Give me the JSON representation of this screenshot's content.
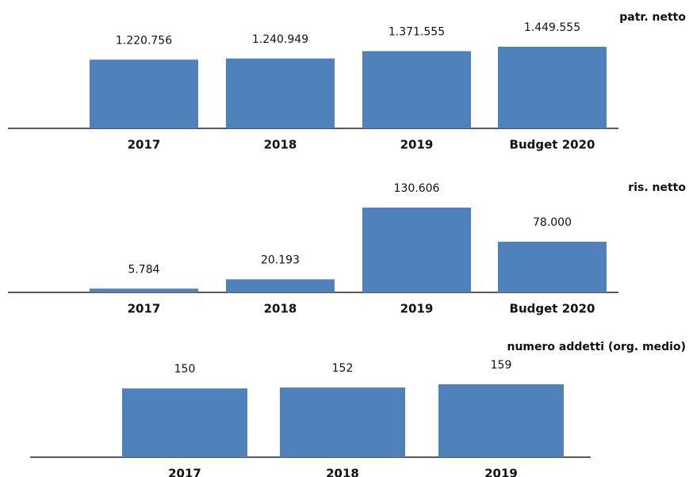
{
  "chart_data": [
    {
      "type": "bar",
      "title": "patr. netto",
      "color": "#4f81bd",
      "categories": [
        "2017",
        "2018",
        "2019",
        "Budget 2020"
      ],
      "values": [
        1220756,
        1240949,
        1371555,
        1449555
      ],
      "value_labels": [
        "1.220.756",
        "1.240.949",
        "1.371.555",
        "1.449.555"
      ]
    },
    {
      "type": "bar",
      "title": "ris. netto",
      "color": "#4f81bd",
      "categories": [
        "2017",
        "2018",
        "2019",
        "Budget 2020"
      ],
      "values": [
        5784,
        20193,
        130606,
        78000
      ],
      "value_labels": [
        "5.784",
        "20.193",
        "130.606",
        "78.000"
      ]
    },
    {
      "type": "bar",
      "title": "numero addetti (org. medio)",
      "color": "#4f81bd",
      "categories": [
        "2017",
        "2018",
        "2019"
      ],
      "values": [
        150,
        152,
        159
      ]
    }
  ]
}
